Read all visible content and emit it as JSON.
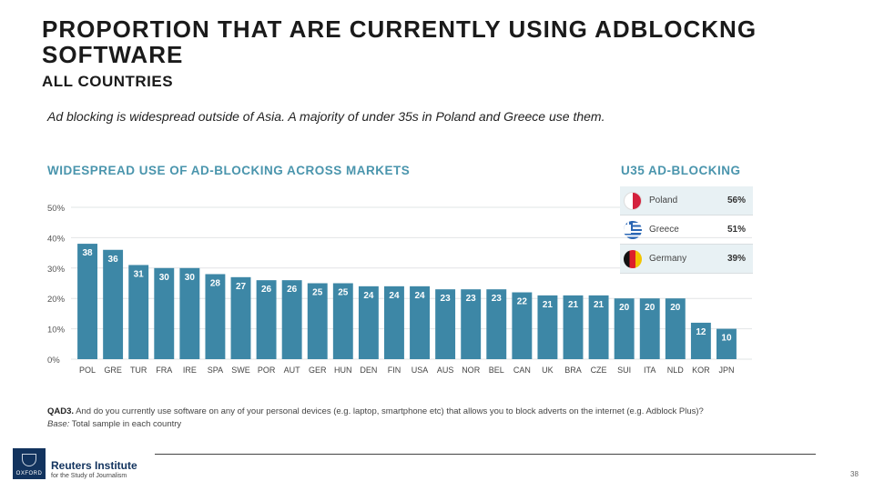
{
  "header": {
    "title": "PROPORTION THAT ARE CURRENTLY USING ADBLOCKNG SOFTWARE",
    "subtitle": "ALL COUNTRIES",
    "description": "Ad blocking is widespread outside of Asia. A majority of under 35s in Poland and Greece use them."
  },
  "chart_data": {
    "type": "bar",
    "title": "WIDESPREAD USE OF AD-BLOCKING ACROSS MARKETS",
    "categories": [
      "POL",
      "GRE",
      "TUR",
      "FRA",
      "IRE",
      "SPA",
      "SWE",
      "POR",
      "AUT",
      "GER",
      "HUN",
      "DEN",
      "FIN",
      "USA",
      "AUS",
      "NOR",
      "BEL",
      "CAN",
      "UK",
      "BRA",
      "CZE",
      "SUI",
      "ITA",
      "NLD",
      "KOR",
      "JPN"
    ],
    "values": [
      38,
      36,
      31,
      30,
      30,
      28,
      27,
      26,
      26,
      25,
      25,
      24,
      24,
      24,
      23,
      23,
      23,
      22,
      21,
      21,
      21,
      20,
      20,
      20,
      12,
      10
    ],
    "yticks": [
      "0%",
      "10%",
      "20%",
      "30%",
      "40%",
      "50%"
    ],
    "ylim": [
      0,
      50
    ],
    "grid": true,
    "bar_color": "#3d87a6"
  },
  "u35": {
    "title": "U35 AD-BLOCKING",
    "rows": [
      {
        "country": "Poland",
        "value": "56%",
        "flag": "poland-flag-icon"
      },
      {
        "country": "Greece",
        "value": "51%",
        "flag": "greece-flag-icon"
      },
      {
        "country": "Germany",
        "value": "39%",
        "flag": "germany-flag-icon"
      }
    ]
  },
  "notes": {
    "question_label": "QAD3.",
    "question_text": "And do you currently use software on any of your personal devices (e.g. laptop, smartphone etc) that allows you to block adverts on the internet (e.g. Adblock Plus)?",
    "base_label": "Base:",
    "base_text": "Total sample in each country"
  },
  "footer": {
    "logo_text": "OXFORD",
    "org_name": "Reuters Institute",
    "org_sub": "for the Study of Journalism",
    "page_number": "38"
  },
  "colors": {
    "accent": "#4a95ad",
    "bar": "#3d87a6",
    "navy": "#12335e"
  }
}
